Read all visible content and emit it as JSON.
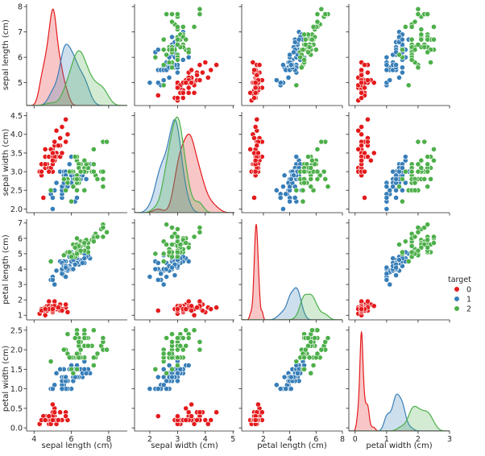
{
  "chart_data": {
    "type": "scatter",
    "subtype": "pairplot",
    "variables": [
      "sepal length (cm)",
      "sepal width (cm)",
      "petal length (cm)",
      "petal width (cm)"
    ],
    "diagonal": "kde",
    "axes": [
      {
        "lim": [
          3.6,
          9.0
        ],
        "ticks": [
          4,
          6,
          8
        ],
        "tick_labels": [
          "4",
          "6",
          "8"
        ],
        "ylim": [
          4.1,
          8.1
        ],
        "yticks": [
          5,
          6,
          7,
          8
        ],
        "ytick_labels": [
          "5",
          "6",
          "7",
          "8"
        ]
      },
      {
        "lim": [
          1.45,
          5.05
        ],
        "ticks": [
          2,
          3,
          4,
          5
        ],
        "tick_labels": [
          "2",
          "3",
          "4",
          "5"
        ],
        "ylim": [
          1.9,
          4.6
        ],
        "yticks": [
          2.0,
          2.5,
          3.0,
          3.5,
          4.0,
          4.5
        ],
        "ytick_labels": [
          "2.0",
          "2.5",
          "3.0",
          "3.5",
          "4.0",
          "4.5"
        ]
      },
      {
        "lim": [
          0.35,
          8.0
        ],
        "ticks": [
          2,
          4,
          6,
          8
        ],
        "tick_labels": [
          "2",
          "4",
          "6",
          "8"
        ],
        "ylim": [
          0.7,
          7.25
        ],
        "yticks": [
          1,
          2,
          3,
          4,
          5,
          6,
          7
        ],
        "ytick_labels": [
          "1",
          "2",
          "3",
          "4",
          "5",
          "6",
          "7"
        ]
      },
      {
        "lim": [
          -0.2,
          3.0
        ],
        "ticks": [
          0,
          1,
          2,
          3
        ],
        "tick_labels": [
          "0",
          "1",
          "2",
          "3"
        ],
        "ylim": [
          -0.08,
          2.6
        ],
        "yticks": [
          0.0,
          0.5,
          1.0,
          1.5,
          2.0,
          2.5
        ],
        "ytick_labels": [
          "0.0",
          "0.5",
          "1.0",
          "1.5",
          "2.0",
          "2.5"
        ]
      }
    ],
    "legend": {
      "title": "target",
      "placement": "right",
      "entries": [
        "0",
        "1",
        "2"
      ]
    },
    "colors": [
      "#e41a1c",
      "#377eb8",
      "#4daf4a"
    ],
    "rows": [
      [
        5.1,
        3.5,
        1.4,
        0.2,
        0
      ],
      [
        4.9,
        3.0,
        1.4,
        0.2,
        0
      ],
      [
        4.7,
        3.2,
        1.3,
        0.2,
        0
      ],
      [
        4.6,
        3.1,
        1.5,
        0.2,
        0
      ],
      [
        5.0,
        3.6,
        1.4,
        0.2,
        0
      ],
      [
        5.4,
        3.9,
        1.7,
        0.4,
        0
      ],
      [
        4.6,
        3.4,
        1.4,
        0.3,
        0
      ],
      [
        5.0,
        3.4,
        1.5,
        0.2,
        0
      ],
      [
        4.4,
        2.9,
        1.4,
        0.2,
        0
      ],
      [
        4.9,
        3.1,
        1.5,
        0.1,
        0
      ],
      [
        5.4,
        3.7,
        1.5,
        0.2,
        0
      ],
      [
        4.8,
        3.4,
        1.6,
        0.2,
        0
      ],
      [
        4.8,
        3.0,
        1.4,
        0.1,
        0
      ],
      [
        4.3,
        3.0,
        1.1,
        0.1,
        0
      ],
      [
        5.8,
        4.0,
        1.2,
        0.2,
        0
      ],
      [
        5.7,
        4.4,
        1.5,
        0.4,
        0
      ],
      [
        5.4,
        3.9,
        1.3,
        0.4,
        0
      ],
      [
        5.1,
        3.5,
        1.4,
        0.3,
        0
      ],
      [
        5.7,
        3.8,
        1.7,
        0.3,
        0
      ],
      [
        5.1,
        3.8,
        1.5,
        0.3,
        0
      ],
      [
        5.4,
        3.4,
        1.7,
        0.2,
        0
      ],
      [
        5.1,
        3.7,
        1.5,
        0.4,
        0
      ],
      [
        4.6,
        3.6,
        1.0,
        0.2,
        0
      ],
      [
        5.1,
        3.3,
        1.7,
        0.5,
        0
      ],
      [
        4.8,
        3.4,
        1.9,
        0.2,
        0
      ],
      [
        5.0,
        3.0,
        1.6,
        0.2,
        0
      ],
      [
        5.0,
        3.4,
        1.6,
        0.4,
        0
      ],
      [
        5.2,
        3.5,
        1.5,
        0.2,
        0
      ],
      [
        5.2,
        3.4,
        1.4,
        0.2,
        0
      ],
      [
        4.7,
        3.2,
        1.6,
        0.2,
        0
      ],
      [
        4.8,
        3.1,
        1.6,
        0.2,
        0
      ],
      [
        5.4,
        3.4,
        1.5,
        0.4,
        0
      ],
      [
        5.2,
        4.1,
        1.5,
        0.1,
        0
      ],
      [
        5.5,
        4.2,
        1.4,
        0.2,
        0
      ],
      [
        4.9,
        3.1,
        1.5,
        0.2,
        0
      ],
      [
        5.0,
        3.2,
        1.2,
        0.2,
        0
      ],
      [
        5.5,
        3.5,
        1.3,
        0.2,
        0
      ],
      [
        4.9,
        3.6,
        1.4,
        0.1,
        0
      ],
      [
        4.4,
        3.0,
        1.3,
        0.2,
        0
      ],
      [
        5.1,
        3.4,
        1.5,
        0.2,
        0
      ],
      [
        5.0,
        3.5,
        1.3,
        0.3,
        0
      ],
      [
        4.5,
        2.3,
        1.3,
        0.3,
        0
      ],
      [
        4.4,
        3.2,
        1.3,
        0.2,
        0
      ],
      [
        5.0,
        3.5,
        1.6,
        0.6,
        0
      ],
      [
        5.1,
        3.8,
        1.9,
        0.4,
        0
      ],
      [
        4.8,
        3.0,
        1.4,
        0.3,
        0
      ],
      [
        5.1,
        3.8,
        1.6,
        0.2,
        0
      ],
      [
        4.6,
        3.2,
        1.4,
        0.2,
        0
      ],
      [
        5.3,
        3.7,
        1.5,
        0.2,
        0
      ],
      [
        5.0,
        3.3,
        1.4,
        0.2,
        0
      ],
      [
        7.0,
        3.2,
        4.7,
        1.4,
        1
      ],
      [
        6.4,
        3.2,
        4.5,
        1.5,
        1
      ],
      [
        6.9,
        3.1,
        4.9,
        1.5,
        1
      ],
      [
        5.5,
        2.3,
        4.0,
        1.3,
        1
      ],
      [
        6.5,
        2.8,
        4.6,
        1.5,
        1
      ],
      [
        5.7,
        2.8,
        4.5,
        1.3,
        1
      ],
      [
        6.3,
        3.3,
        4.7,
        1.6,
        1
      ],
      [
        4.9,
        2.4,
        3.3,
        1.0,
        1
      ],
      [
        6.6,
        2.9,
        4.6,
        1.3,
        1
      ],
      [
        5.2,
        2.7,
        3.9,
        1.4,
        1
      ],
      [
        5.0,
        2.0,
        3.5,
        1.0,
        1
      ],
      [
        5.9,
        3.0,
        4.2,
        1.5,
        1
      ],
      [
        6.0,
        2.2,
        4.0,
        1.0,
        1
      ],
      [
        6.1,
        2.9,
        4.7,
        1.4,
        1
      ],
      [
        5.6,
        2.9,
        3.6,
        1.3,
        1
      ],
      [
        6.7,
        3.1,
        4.4,
        1.4,
        1
      ],
      [
        5.6,
        3.0,
        4.5,
        1.5,
        1
      ],
      [
        5.8,
        2.7,
        4.1,
        1.0,
        1
      ],
      [
        6.2,
        2.2,
        4.5,
        1.5,
        1
      ],
      [
        5.6,
        2.5,
        3.9,
        1.1,
        1
      ],
      [
        5.9,
        3.2,
        4.8,
        1.8,
        1
      ],
      [
        6.1,
        2.8,
        4.0,
        1.3,
        1
      ],
      [
        6.3,
        2.5,
        4.9,
        1.5,
        1
      ],
      [
        6.1,
        2.8,
        4.7,
        1.2,
        1
      ],
      [
        6.4,
        2.9,
        4.3,
        1.3,
        1
      ],
      [
        6.6,
        3.0,
        4.4,
        1.4,
        1
      ],
      [
        6.8,
        2.8,
        4.8,
        1.4,
        1
      ],
      [
        6.7,
        3.0,
        5.0,
        1.7,
        1
      ],
      [
        6.0,
        2.9,
        4.5,
        1.5,
        1
      ],
      [
        5.7,
        2.6,
        3.5,
        1.0,
        1
      ],
      [
        5.5,
        2.4,
        3.8,
        1.1,
        1
      ],
      [
        5.5,
        2.4,
        3.7,
        1.0,
        1
      ],
      [
        5.8,
        2.7,
        3.9,
        1.2,
        1
      ],
      [
        6.0,
        2.7,
        5.1,
        1.6,
        1
      ],
      [
        5.4,
        3.0,
        4.5,
        1.5,
        1
      ],
      [
        6.0,
        3.4,
        4.5,
        1.6,
        1
      ],
      [
        6.7,
        3.1,
        4.7,
        1.5,
        1
      ],
      [
        6.3,
        2.3,
        4.4,
        1.3,
        1
      ],
      [
        5.6,
        3.0,
        4.1,
        1.3,
        1
      ],
      [
        5.5,
        2.5,
        4.0,
        1.3,
        1
      ],
      [
        5.5,
        2.6,
        4.4,
        1.2,
        1
      ],
      [
        6.1,
        3.0,
        4.6,
        1.4,
        1
      ],
      [
        5.8,
        2.6,
        4.0,
        1.2,
        1
      ],
      [
        5.0,
        2.3,
        3.3,
        1.0,
        1
      ],
      [
        5.6,
        2.7,
        4.2,
        1.3,
        1
      ],
      [
        5.7,
        3.0,
        4.2,
        1.2,
        1
      ],
      [
        5.7,
        2.9,
        4.2,
        1.3,
        1
      ],
      [
        6.2,
        2.9,
        4.3,
        1.3,
        1
      ],
      [
        5.1,
        2.5,
        3.0,
        1.1,
        1
      ],
      [
        5.7,
        2.8,
        4.1,
        1.3,
        1
      ],
      [
        6.3,
        3.3,
        6.0,
        2.5,
        2
      ],
      [
        5.8,
        2.7,
        5.1,
        1.9,
        2
      ],
      [
        7.1,
        3.0,
        5.9,
        2.1,
        2
      ],
      [
        6.3,
        2.9,
        5.6,
        1.8,
        2
      ],
      [
        6.5,
        3.0,
        5.8,
        2.2,
        2
      ],
      [
        7.6,
        3.0,
        6.6,
        2.1,
        2
      ],
      [
        4.9,
        2.5,
        4.5,
        1.7,
        2
      ],
      [
        7.3,
        2.9,
        6.3,
        1.8,
        2
      ],
      [
        6.7,
        2.5,
        5.8,
        1.8,
        2
      ],
      [
        7.2,
        3.6,
        6.1,
        2.5,
        2
      ],
      [
        6.5,
        3.2,
        5.1,
        2.0,
        2
      ],
      [
        6.4,
        2.7,
        5.3,
        1.9,
        2
      ],
      [
        6.8,
        3.0,
        5.5,
        2.1,
        2
      ],
      [
        5.7,
        2.5,
        5.0,
        2.0,
        2
      ],
      [
        5.8,
        2.8,
        5.1,
        2.4,
        2
      ],
      [
        6.4,
        3.2,
        5.3,
        2.3,
        2
      ],
      [
        6.5,
        3.0,
        5.5,
        1.8,
        2
      ],
      [
        7.7,
        3.8,
        6.7,
        2.2,
        2
      ],
      [
        7.7,
        2.6,
        6.9,
        2.3,
        2
      ],
      [
        6.0,
        2.2,
        5.0,
        1.5,
        2
      ],
      [
        6.9,
        3.2,
        5.7,
        2.3,
        2
      ],
      [
        5.6,
        2.8,
        4.9,
        2.0,
        2
      ],
      [
        7.7,
        2.8,
        6.7,
        2.0,
        2
      ],
      [
        6.3,
        2.7,
        4.9,
        1.8,
        2
      ],
      [
        6.7,
        3.3,
        5.7,
        2.1,
        2
      ],
      [
        7.2,
        3.2,
        6.0,
        1.8,
        2
      ],
      [
        6.2,
        2.8,
        4.8,
        1.8,
        2
      ],
      [
        6.1,
        3.0,
        4.9,
        1.8,
        2
      ],
      [
        6.4,
        2.8,
        5.6,
        2.1,
        2
      ],
      [
        7.2,
        3.0,
        5.8,
        1.6,
        2
      ],
      [
        7.4,
        2.8,
        6.1,
        1.9,
        2
      ],
      [
        7.9,
        3.8,
        6.4,
        2.0,
        2
      ],
      [
        6.4,
        2.8,
        5.6,
        2.2,
        2
      ],
      [
        6.3,
        2.8,
        5.1,
        1.5,
        2
      ],
      [
        6.1,
        2.6,
        5.6,
        1.4,
        2
      ],
      [
        7.7,
        3.0,
        6.1,
        2.3,
        2
      ],
      [
        6.3,
        3.4,
        5.6,
        2.4,
        2
      ],
      [
        6.4,
        3.1,
        5.5,
        1.8,
        2
      ],
      [
        6.0,
        3.0,
        4.8,
        1.8,
        2
      ],
      [
        6.9,
        3.1,
        5.4,
        2.1,
        2
      ],
      [
        6.7,
        3.1,
        5.6,
        2.4,
        2
      ],
      [
        6.9,
        3.1,
        5.1,
        2.3,
        2
      ],
      [
        5.8,
        2.7,
        5.1,
        1.9,
        2
      ],
      [
        6.8,
        3.2,
        5.9,
        2.3,
        2
      ],
      [
        6.7,
        3.3,
        5.7,
        2.5,
        2
      ],
      [
        6.7,
        3.0,
        5.2,
        2.3,
        2
      ],
      [
        6.3,
        2.5,
        5.0,
        1.9,
        2
      ],
      [
        6.5,
        3.0,
        5.2,
        2.0,
        2
      ],
      [
        6.2,
        3.4,
        5.4,
        2.3,
        2
      ],
      [
        5.9,
        3.0,
        5.1,
        1.8,
        2
      ]
    ]
  }
}
